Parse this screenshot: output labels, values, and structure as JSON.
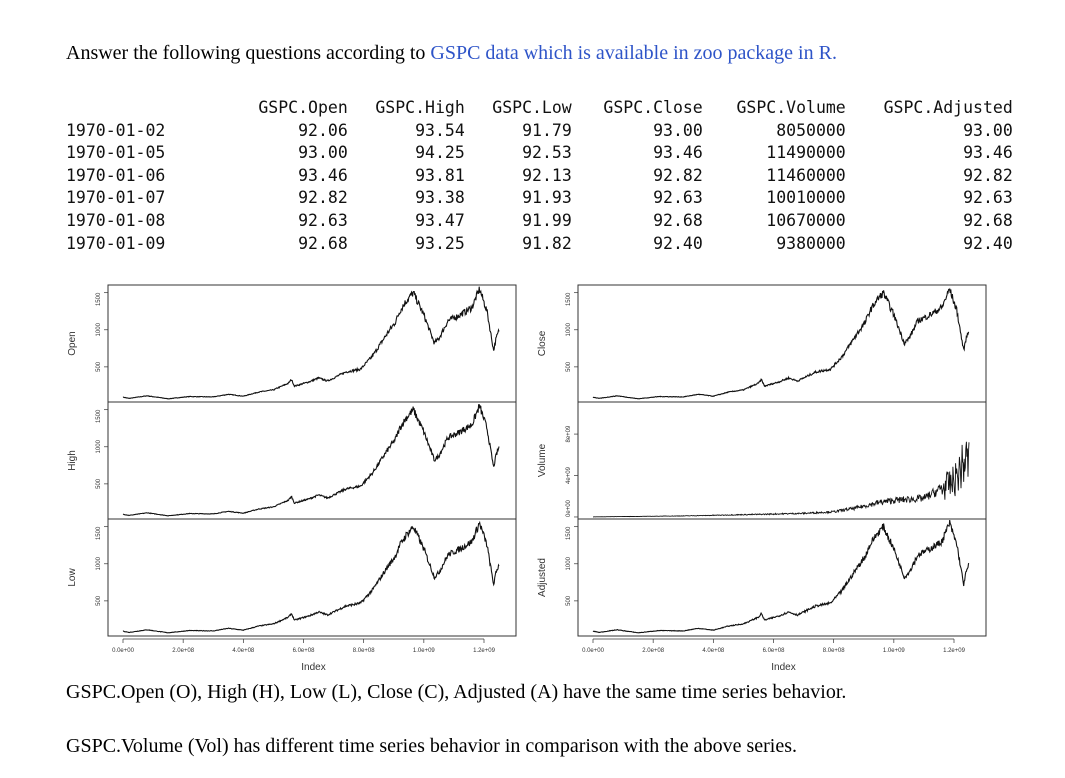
{
  "question": {
    "prefix": "Answer the following questions according to ",
    "link": "GSPC data which is available in zoo package in R.",
    "link_color": "#2e54c8"
  },
  "table": {
    "headers": [
      "GSPC.Open",
      "GSPC.High",
      "GSPC.Low",
      "GSPC.Close",
      "GSPC.Volume",
      "GSPC.Adjusted"
    ],
    "rows": [
      {
        "date": "1970-01-02",
        "values": [
          "92.06",
          "93.54",
          "91.79",
          "93.00",
          "8050000",
          "93.00"
        ]
      },
      {
        "date": "1970-01-05",
        "values": [
          "93.00",
          "94.25",
          "92.53",
          "93.46",
          "11490000",
          "93.46"
        ]
      },
      {
        "date": "1970-01-06",
        "values": [
          "93.46",
          "93.81",
          "92.13",
          "92.82",
          "11460000",
          "92.82"
        ]
      },
      {
        "date": "1970-01-07",
        "values": [
          "92.82",
          "93.38",
          "91.93",
          "92.63",
          "10010000",
          "92.63"
        ]
      },
      {
        "date": "1970-01-08",
        "values": [
          "92.63",
          "93.47",
          "91.99",
          "92.68",
          "10670000",
          "92.68"
        ]
      },
      {
        "date": "1970-01-09",
        "values": [
          "92.68",
          "93.25",
          "91.82",
          "92.40",
          "9380000",
          "92.40"
        ]
      }
    ]
  },
  "chart_data": {
    "type": "line",
    "xlabel": "Index",
    "xlim": [
      0,
      1250000000
    ],
    "x_ticks": [
      "0.0e+00",
      "2.0e+08",
      "4.0e+08",
      "6.0e+08",
      "8.0e+08",
      "1.0e+09",
      "1.2e+09"
    ],
    "x_tick_values": [
      0,
      200000000,
      400000000,
      600000000,
      800000000,
      1000000000,
      1200000000
    ],
    "price_shape": {
      "x": [
        0,
        20000000,
        80000000,
        150000000,
        220000000,
        300000000,
        350000000,
        400000000,
        450000000,
        500000000,
        550000000,
        560000000,
        570000000,
        620000000,
        650000000,
        680000000,
        740000000,
        790000000,
        830000000,
        880000000,
        905000000,
        920000000,
        940000000,
        965000000,
        1000000000,
        1035000000,
        1050000000,
        1080000000,
        1120000000,
        1160000000,
        1185000000,
        1210000000,
        1232000000,
        1240000000,
        1255000000
      ],
      "y": [
        92,
        75,
        110,
        70,
        100,
        95,
        130,
        105,
        160,
        190,
        280,
        330,
        240,
        300,
        350,
        310,
        430,
        470,
        650,
        960,
        1100,
        1250,
        1380,
        1500,
        1200,
        820,
        880,
        1120,
        1200,
        1300,
        1550,
        1250,
        720,
        880,
        1050
      ]
    },
    "volume_shape": {
      "x": [
        0,
        300000000,
        550000000,
        700000000,
        800000000,
        880000000,
        950000000,
        1000000000,
        1100000000,
        1150000000,
        1200000000,
        1220000000,
        1240000000,
        1255000000
      ],
      "y": [
        10000000,
        100000000,
        250000000,
        350000000,
        500000000,
        900000000,
        1400000000,
        1600000000,
        1800000000,
        2600000000,
        3400000000,
        4500000000,
        5500000000,
        5200000000
      ]
    },
    "panels": [
      {
        "name": "Open",
        "ylabel": "Open",
        "column": "left",
        "y_ticks": [
          "500",
          "1000",
          "1500"
        ],
        "y_tick_values": [
          500,
          1000,
          1500
        ],
        "ylim": [
          40,
          1590
        ]
      },
      {
        "name": "High",
        "ylabel": "High",
        "column": "left",
        "y_ticks": [
          "500",
          "1000",
          "1500"
        ],
        "y_tick_values": [
          500,
          1000,
          1500
        ],
        "ylim": [
          40,
          1590
        ]
      },
      {
        "name": "Low",
        "ylabel": "Low",
        "column": "left",
        "y_ticks": [
          "500",
          "1000",
          "1500"
        ],
        "y_tick_values": [
          500,
          1000,
          1500
        ],
        "ylim": [
          40,
          1590
        ]
      },
      {
        "name": "Close",
        "ylabel": "Close",
        "column": "right",
        "y_ticks": [
          "500",
          "1000",
          "1500"
        ],
        "y_tick_values": [
          500,
          1000,
          1500
        ],
        "ylim": [
          40,
          1590
        ]
      },
      {
        "name": "Volume",
        "ylabel": "Volume",
        "column": "right",
        "y_ticks": [
          "0e+00",
          "4e+09",
          "8e+09"
        ],
        "y_tick_values": [
          0,
          4000000000,
          8000000000
        ],
        "ylim": [
          -100000000,
          11000000000
        ]
      },
      {
        "name": "Adjusted",
        "ylabel": "Adjusted",
        "column": "right",
        "y_ticks": [
          "500",
          "1000",
          "1500"
        ],
        "y_tick_values": [
          500,
          1000,
          1500
        ],
        "ylim": [
          40,
          1590
        ]
      }
    ]
  },
  "notes": [
    "GSPC.Open (O), High (H), Low (L), Close (C), Adjusted (A) have the same time series behavior.",
    "GSPC.Volume (Vol) has different time series behavior in comparison with the above series."
  ]
}
